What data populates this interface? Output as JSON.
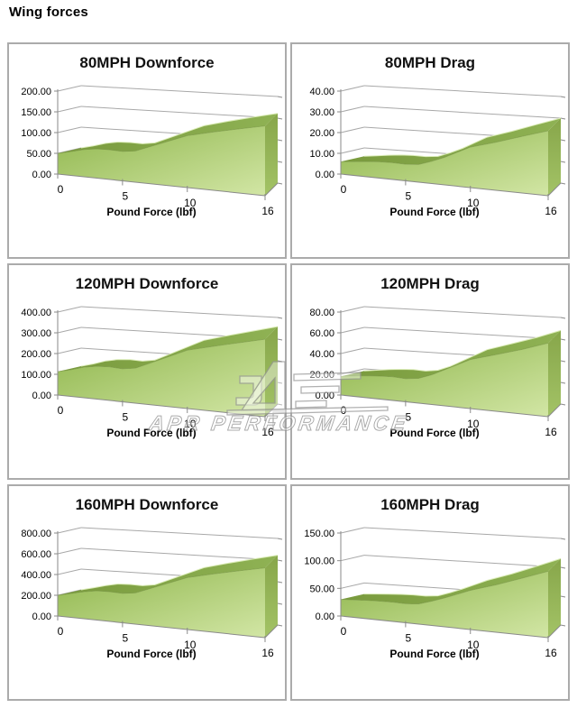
{
  "page": {
    "heading": "Wing forces"
  },
  "watermark": {
    "text": "APR PERFORMANCE"
  },
  "colors": {
    "area_face_start": "#8fb64c",
    "area_face_end": "#d2e6a5",
    "area_top_start": "#799a3d",
    "area_top_end": "#8fb254",
    "area_side_start": "#87a64a",
    "area_side_end": "#a3c366",
    "ribbon_highlight": "#dcedb9",
    "grid_line": "#a8a8a8",
    "axis_line": "#8a8a8a",
    "panel_border": "#ababab",
    "watermark_stroke": "#969696",
    "text": "#000000"
  },
  "axis_shared": {
    "x_label": "Pound Force (lbf)",
    "x_tick_labels": [
      "0",
      "5",
      "10",
      "16"
    ],
    "x_tick_values": [
      0,
      5,
      10,
      16
    ]
  },
  "chart_data": [
    {
      "type": "area",
      "title": "80MPH Downforce",
      "xlabel": "Pound Force (lbf)",
      "x": [
        0,
        1,
        2,
        3,
        4,
        5,
        6,
        7,
        8,
        9,
        10,
        12,
        14,
        16
      ],
      "values": [
        50,
        57,
        65,
        70,
        71,
        70,
        74,
        86,
        98,
        110,
        122,
        136,
        149,
        161
      ],
      "y_ticks": [
        0,
        50,
        100,
        150,
        200
      ],
      "ylim": [
        0,
        200
      ],
      "xlim": [
        0,
        16
      ],
      "x_tick_labels": [
        "0",
        "5",
        "10",
        "16"
      ],
      "x_tick_values": [
        0,
        5,
        10,
        16
      ],
      "grid": true,
      "legend": "none"
    },
    {
      "type": "area",
      "title": "80MPH Drag",
      "xlabel": "Pound Force (lbf)",
      "x": [
        0,
        1,
        2,
        3,
        4,
        5,
        6,
        7,
        8,
        9,
        10,
        12,
        14,
        16
      ],
      "values": [
        6,
        6.6,
        7.3,
        7.8,
        8,
        7.9,
        8.4,
        10.5,
        13,
        16,
        19,
        22.5,
        26.3,
        30
      ],
      "y_ticks": [
        0,
        10,
        20,
        30,
        40
      ],
      "ylim": [
        0,
        40
      ],
      "xlim": [
        0,
        16
      ],
      "x_tick_labels": [
        "0",
        "5",
        "10",
        "16"
      ],
      "x_tick_values": [
        0,
        5,
        10,
        16
      ],
      "grid": true,
      "legend": "none"
    },
    {
      "type": "area",
      "title": "120MPH Downforce",
      "xlabel": "Pound Force (lbf)",
      "x": [
        0,
        1,
        2,
        3,
        4,
        5,
        6,
        7,
        8,
        9,
        10,
        12,
        14,
        16
      ],
      "values": [
        113,
        128,
        146,
        157,
        160,
        157,
        166,
        193,
        220,
        247,
        274,
        303,
        331,
        358
      ],
      "y_ticks": [
        0,
        100,
        200,
        300,
        400
      ],
      "ylim": [
        0,
        400
      ],
      "xlim": [
        0,
        16
      ],
      "x_tick_labels": [
        "0",
        "5",
        "10",
        "16"
      ],
      "x_tick_values": [
        0,
        5,
        10,
        16
      ],
      "grid": true,
      "legend": "none"
    },
    {
      "type": "area",
      "title": "120MPH Drag",
      "xlabel": "Pound Force (lbf)",
      "x": [
        0,
        1,
        2,
        3,
        4,
        5,
        6,
        7,
        8,
        9,
        10,
        12,
        14,
        16
      ],
      "values": [
        18,
        19.5,
        21,
        22,
        22.5,
        22,
        23.5,
        28,
        34,
        40,
        46,
        53,
        60,
        68
      ],
      "y_ticks": [
        0,
        20,
        40,
        60,
        80
      ],
      "ylim": [
        0,
        80
      ],
      "xlim": [
        0,
        16
      ],
      "x_tick_labels": [
        "0",
        "5",
        "10",
        "16"
      ],
      "x_tick_values": [
        0,
        5,
        10,
        16
      ],
      "grid": true,
      "legend": "none"
    },
    {
      "type": "area",
      "title": "160MPH Downforce",
      "xlabel": "Pound Force (lbf)",
      "x": [
        0,
        1,
        2,
        3,
        4,
        5,
        6,
        7,
        8,
        9,
        10,
        12,
        14,
        16
      ],
      "values": [
        200,
        228,
        258,
        280,
        284,
        280,
        296,
        344,
        392,
        440,
        488,
        544,
        596,
        645
      ],
      "y_ticks": [
        0,
        200,
        400,
        600,
        800
      ],
      "ylim": [
        0,
        800
      ],
      "xlim": [
        0,
        16
      ],
      "x_tick_labels": [
        "0",
        "5",
        "10",
        "16"
      ],
      "x_tick_values": [
        0,
        5,
        10,
        16
      ],
      "grid": true,
      "legend": "none"
    },
    {
      "type": "area",
      "title": "160MPH Drag",
      "xlabel": "Pound Force (lbf)",
      "x": [
        0,
        1,
        2,
        3,
        4,
        5,
        6,
        7,
        8,
        9,
        10,
        12,
        14,
        16
      ],
      "values": [
        30,
        31.5,
        33,
        34,
        34.5,
        34,
        36,
        43,
        51,
        60,
        69,
        83,
        99,
        115
      ],
      "y_ticks": [
        0,
        50,
        100,
        150
      ],
      "ylim": [
        0,
        150
      ],
      "xlim": [
        0,
        16
      ],
      "x_tick_labels": [
        "0",
        "5",
        "10",
        "16"
      ],
      "x_tick_values": [
        0,
        5,
        10,
        16
      ],
      "grid": true,
      "legend": "none"
    }
  ]
}
